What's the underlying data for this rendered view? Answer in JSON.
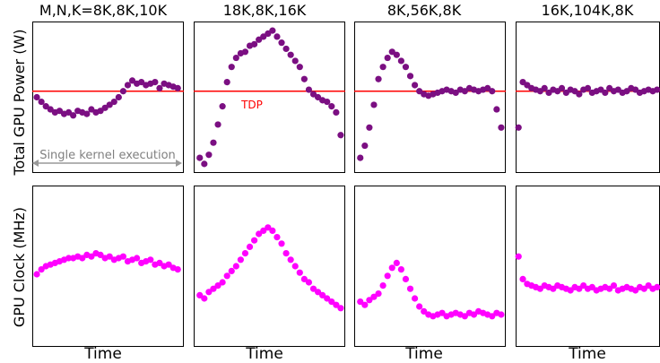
{
  "figure": {
    "ylabel_top": "Total GPU Power (W)",
    "ylabel_bottom": "GPU Clock (MHz)",
    "xlabel": "Time",
    "tdp_label": "TDP",
    "annotation": "Single kernel execution",
    "colors": {
      "power": "#7b0f82",
      "clock": "#ff00ff",
      "tdp": "#ff0000",
      "annotation": "#999999"
    }
  },
  "chart_data": [
    {
      "type": "scatter",
      "title": "M,N,K=8K,8K,10K",
      "metric": "power",
      "xlabel": "",
      "ylabel": "Total GPU Power (W)",
      "xlim": [
        0,
        1
      ],
      "ylim": [
        0,
        1
      ],
      "tdp": 0.54,
      "x": [
        0.03,
        0.06,
        0.09,
        0.12,
        0.15,
        0.18,
        0.21,
        0.24,
        0.27,
        0.3,
        0.33,
        0.36,
        0.39,
        0.42,
        0.45,
        0.48,
        0.51,
        0.54,
        0.57,
        0.6,
        0.63,
        0.66,
        0.69,
        0.72,
        0.75,
        0.78,
        0.81,
        0.84,
        0.87,
        0.9,
        0.93,
        0.96
      ],
      "y": [
        0.5,
        0.47,
        0.44,
        0.42,
        0.4,
        0.41,
        0.39,
        0.4,
        0.38,
        0.41,
        0.4,
        0.39,
        0.42,
        0.4,
        0.41,
        0.43,
        0.45,
        0.47,
        0.5,
        0.54,
        0.58,
        0.61,
        0.59,
        0.6,
        0.58,
        0.59,
        0.6,
        0.56,
        0.59,
        0.58,
        0.57,
        0.56
      ]
    },
    {
      "type": "scatter",
      "title": "18K,8K,16K",
      "metric": "power",
      "xlabel": "",
      "ylabel": "",
      "xlim": [
        0,
        1
      ],
      "ylim": [
        0,
        1
      ],
      "tdp": 0.54,
      "x": [
        0.04,
        0.07,
        0.1,
        0.13,
        0.16,
        0.19,
        0.22,
        0.25,
        0.28,
        0.31,
        0.34,
        0.37,
        0.4,
        0.43,
        0.46,
        0.49,
        0.52,
        0.55,
        0.58,
        0.61,
        0.64,
        0.67,
        0.7,
        0.73,
        0.76,
        0.79,
        0.82,
        0.85,
        0.88,
        0.91,
        0.94,
        0.97
      ],
      "y": [
        0.1,
        0.06,
        0.12,
        0.2,
        0.32,
        0.44,
        0.6,
        0.7,
        0.76,
        0.79,
        0.8,
        0.84,
        0.85,
        0.88,
        0.9,
        0.92,
        0.94,
        0.9,
        0.86,
        0.82,
        0.78,
        0.74,
        0.7,
        0.62,
        0.55,
        0.52,
        0.5,
        0.48,
        0.47,
        0.44,
        0.4,
        0.25
      ]
    },
    {
      "type": "scatter",
      "title": "8K,56K,8K",
      "metric": "power",
      "xlabel": "",
      "ylabel": "",
      "xlim": [
        0,
        1
      ],
      "ylim": [
        0,
        1
      ],
      "tdp": 0.54,
      "x": [
        0.04,
        0.07,
        0.1,
        0.13,
        0.16,
        0.19,
        0.22,
        0.25,
        0.28,
        0.31,
        0.34,
        0.37,
        0.4,
        0.43,
        0.46,
        0.49,
        0.52,
        0.55,
        0.58,
        0.61,
        0.64,
        0.67,
        0.7,
        0.73,
        0.76,
        0.79,
        0.82,
        0.85,
        0.88,
        0.91,
        0.94,
        0.97
      ],
      "y": [
        0.1,
        0.18,
        0.3,
        0.45,
        0.62,
        0.7,
        0.76,
        0.8,
        0.78,
        0.74,
        0.7,
        0.64,
        0.58,
        0.54,
        0.52,
        0.51,
        0.52,
        0.53,
        0.54,
        0.55,
        0.54,
        0.53,
        0.55,
        0.54,
        0.56,
        0.55,
        0.54,
        0.55,
        0.56,
        0.54,
        0.42,
        0.3
      ]
    },
    {
      "type": "scatter",
      "title": "16K,104K,8K",
      "metric": "power",
      "xlabel": "",
      "ylabel": "",
      "xlim": [
        0,
        1
      ],
      "ylim": [
        0,
        1
      ],
      "tdp": 0.54,
      "x": [
        0.02,
        0.05,
        0.08,
        0.11,
        0.14,
        0.17,
        0.2,
        0.23,
        0.26,
        0.29,
        0.32,
        0.35,
        0.38,
        0.41,
        0.44,
        0.47,
        0.5,
        0.53,
        0.56,
        0.59,
        0.62,
        0.65,
        0.68,
        0.71,
        0.74,
        0.77,
        0.8,
        0.83,
        0.86,
        0.89,
        0.92,
        0.95,
        0.98
      ],
      "y": [
        0.3,
        0.6,
        0.58,
        0.56,
        0.55,
        0.54,
        0.56,
        0.53,
        0.55,
        0.54,
        0.56,
        0.53,
        0.55,
        0.54,
        0.52,
        0.55,
        0.56,
        0.53,
        0.54,
        0.55,
        0.53,
        0.56,
        0.54,
        0.55,
        0.53,
        0.54,
        0.56,
        0.55,
        0.53,
        0.54,
        0.55,
        0.54,
        0.55
      ]
    },
    {
      "type": "scatter",
      "title": "",
      "metric": "clock",
      "xlabel": "Time",
      "ylabel": "GPU Clock (MHz)",
      "xlim": [
        0,
        1
      ],
      "ylim": [
        0,
        1
      ],
      "x": [
        0.03,
        0.06,
        0.09,
        0.12,
        0.15,
        0.18,
        0.21,
        0.24,
        0.27,
        0.3,
        0.33,
        0.36,
        0.39,
        0.42,
        0.45,
        0.48,
        0.51,
        0.54,
        0.57,
        0.6,
        0.63,
        0.66,
        0.69,
        0.72,
        0.75,
        0.78,
        0.81,
        0.84,
        0.87,
        0.9,
        0.93,
        0.96
      ],
      "y": [
        0.45,
        0.48,
        0.5,
        0.51,
        0.52,
        0.53,
        0.54,
        0.55,
        0.55,
        0.56,
        0.55,
        0.57,
        0.56,
        0.58,
        0.57,
        0.55,
        0.56,
        0.54,
        0.55,
        0.56,
        0.53,
        0.54,
        0.55,
        0.52,
        0.53,
        0.54,
        0.51,
        0.52,
        0.5,
        0.51,
        0.49,
        0.48
      ]
    },
    {
      "type": "scatter",
      "title": "",
      "metric": "clock",
      "xlabel": "Time",
      "ylabel": "",
      "xlim": [
        0,
        1
      ],
      "ylim": [
        0,
        1
      ],
      "x": [
        0.04,
        0.07,
        0.1,
        0.13,
        0.16,
        0.19,
        0.22,
        0.25,
        0.28,
        0.31,
        0.34,
        0.37,
        0.4,
        0.43,
        0.46,
        0.49,
        0.52,
        0.55,
        0.58,
        0.61,
        0.64,
        0.67,
        0.7,
        0.73,
        0.76,
        0.79,
        0.82,
        0.85,
        0.88,
        0.91,
        0.94,
        0.97
      ],
      "y": [
        0.32,
        0.3,
        0.34,
        0.36,
        0.38,
        0.4,
        0.44,
        0.47,
        0.5,
        0.54,
        0.58,
        0.62,
        0.66,
        0.7,
        0.72,
        0.74,
        0.72,
        0.68,
        0.64,
        0.58,
        0.54,
        0.5,
        0.46,
        0.42,
        0.4,
        0.36,
        0.34,
        0.32,
        0.3,
        0.28,
        0.26,
        0.24
      ]
    },
    {
      "type": "scatter",
      "title": "",
      "metric": "clock",
      "xlabel": "Time",
      "ylabel": "",
      "xlim": [
        0,
        1
      ],
      "ylim": [
        0,
        1
      ],
      "x": [
        0.04,
        0.07,
        0.1,
        0.13,
        0.16,
        0.19,
        0.22,
        0.25,
        0.28,
        0.31,
        0.34,
        0.37,
        0.4,
        0.43,
        0.46,
        0.49,
        0.52,
        0.55,
        0.58,
        0.61,
        0.64,
        0.67,
        0.7,
        0.73,
        0.76,
        0.79,
        0.82,
        0.85,
        0.88,
        0.91,
        0.94,
        0.97
      ],
      "y": [
        0.28,
        0.26,
        0.29,
        0.31,
        0.33,
        0.38,
        0.44,
        0.49,
        0.52,
        0.48,
        0.42,
        0.36,
        0.3,
        0.25,
        0.22,
        0.2,
        0.19,
        0.2,
        0.21,
        0.19,
        0.2,
        0.21,
        0.2,
        0.19,
        0.21,
        0.2,
        0.22,
        0.21,
        0.2,
        0.19,
        0.21,
        0.2
      ]
    },
    {
      "type": "scatter",
      "title": "",
      "metric": "clock",
      "xlabel": "Time",
      "ylabel": "",
      "xlim": [
        0,
        1
      ],
      "ylim": [
        0,
        1
      ],
      "x": [
        0.02,
        0.05,
        0.08,
        0.11,
        0.14,
        0.17,
        0.2,
        0.23,
        0.26,
        0.29,
        0.32,
        0.35,
        0.38,
        0.41,
        0.44,
        0.47,
        0.5,
        0.53,
        0.56,
        0.59,
        0.62,
        0.65,
        0.68,
        0.71,
        0.74,
        0.77,
        0.8,
        0.83,
        0.86,
        0.89,
        0.92,
        0.95,
        0.98
      ],
      "y": [
        0.56,
        0.42,
        0.39,
        0.38,
        0.37,
        0.36,
        0.38,
        0.37,
        0.36,
        0.38,
        0.37,
        0.36,
        0.35,
        0.37,
        0.36,
        0.38,
        0.36,
        0.37,
        0.35,
        0.36,
        0.37,
        0.36,
        0.38,
        0.35,
        0.36,
        0.37,
        0.36,
        0.35,
        0.37,
        0.36,
        0.38,
        0.36,
        0.37
      ]
    }
  ]
}
